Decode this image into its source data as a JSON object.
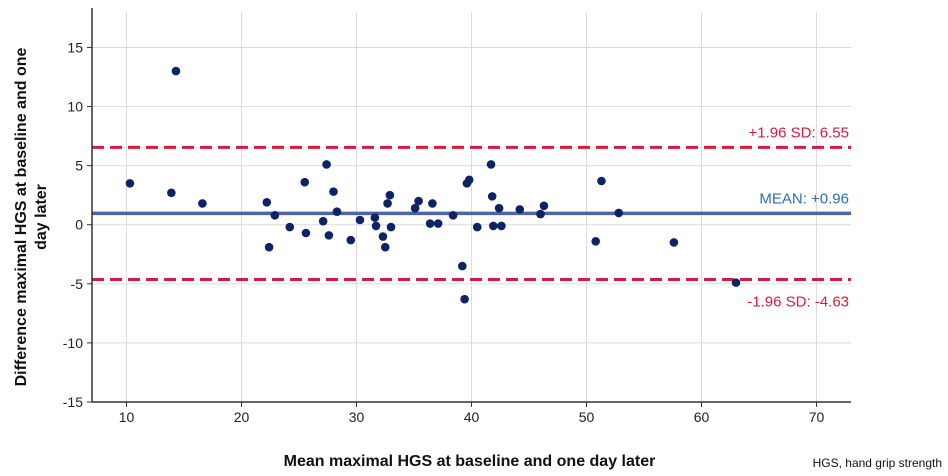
{
  "chart_data": {
    "type": "scatter",
    "xlabel": "Mean maximal HGS at baseline and one day later",
    "ylabel": "Difference maximal HGS at baseline and one day later",
    "xlim": [
      7,
      73
    ],
    "ylim": [
      -15,
      18
    ],
    "x_ticks": [
      10,
      20,
      30,
      40,
      50,
      60,
      70
    ],
    "y_ticks": [
      -15,
      -10,
      -5,
      0,
      5,
      10,
      15
    ],
    "grid": true,
    "points": [
      {
        "x": 10.3,
        "y": 3.5
      },
      {
        "x": 13.9,
        "y": 2.7
      },
      {
        "x": 14.3,
        "y": 13.0
      },
      {
        "x": 16.6,
        "y": 1.8
      },
      {
        "x": 22.2,
        "y": 1.9
      },
      {
        "x": 22.4,
        "y": -1.9
      },
      {
        "x": 22.9,
        "y": 0.8
      },
      {
        "x": 24.2,
        "y": -0.2
      },
      {
        "x": 25.5,
        "y": 3.6
      },
      {
        "x": 25.6,
        "y": -0.7
      },
      {
        "x": 27.1,
        "y": 0.3
      },
      {
        "x": 27.4,
        "y": 5.1
      },
      {
        "x": 27.6,
        "y": -0.9
      },
      {
        "x": 28.0,
        "y": 2.8
      },
      {
        "x": 28.3,
        "y": 1.1
      },
      {
        "x": 29.5,
        "y": -1.3
      },
      {
        "x": 30.3,
        "y": 0.4
      },
      {
        "x": 31.6,
        "y": 0.6
      },
      {
        "x": 31.7,
        "y": -0.1
      },
      {
        "x": 32.3,
        "y": -1.0
      },
      {
        "x": 32.5,
        "y": -1.9
      },
      {
        "x": 32.7,
        "y": 1.8
      },
      {
        "x": 32.9,
        "y": 2.5
      },
      {
        "x": 33.0,
        "y": -0.2
      },
      {
        "x": 35.1,
        "y": 1.4
      },
      {
        "x": 35.4,
        "y": 2.0
      },
      {
        "x": 36.4,
        "y": 0.1
      },
      {
        "x": 36.6,
        "y": 1.8
      },
      {
        "x": 37.1,
        "y": 0.1
      },
      {
        "x": 38.4,
        "y": 0.8
      },
      {
        "x": 39.2,
        "y": -3.5
      },
      {
        "x": 39.4,
        "y": -6.3
      },
      {
        "x": 39.6,
        "y": 3.5
      },
      {
        "x": 39.8,
        "y": 3.8
      },
      {
        "x": 40.5,
        "y": -0.2
      },
      {
        "x": 41.7,
        "y": 5.1
      },
      {
        "x": 41.8,
        "y": 2.4
      },
      {
        "x": 41.9,
        "y": -0.1
      },
      {
        "x": 42.4,
        "y": 1.4
      },
      {
        "x": 42.6,
        "y": -0.1
      },
      {
        "x": 44.2,
        "y": 1.3
      },
      {
        "x": 46.0,
        "y": 0.9
      },
      {
        "x": 46.3,
        "y": 1.6
      },
      {
        "x": 50.8,
        "y": -1.4
      },
      {
        "x": 51.3,
        "y": 3.7
      },
      {
        "x": 52.8,
        "y": 1.0
      },
      {
        "x": 57.6,
        "y": -1.5
      },
      {
        "x": 63.0,
        "y": -4.9
      }
    ],
    "reference_lines": [
      {
        "label": "+1.96 SD: 6.55",
        "y": 6.55,
        "style": "dashed",
        "color": "#d81b3b",
        "label_position": "above"
      },
      {
        "label": "MEAN: +0.96",
        "y": 0.96,
        "style": "solid",
        "color": "#4a64ad",
        "label_color": "#2a6fb8",
        "label_position": "above"
      },
      {
        "label": "-1.96 SD: -4.63",
        "y": -4.63,
        "style": "dashed",
        "color": "#d81b3b",
        "label_position": "below"
      }
    ],
    "point_color": "#0d2366",
    "footnote": "HGS, hand grip strength"
  }
}
